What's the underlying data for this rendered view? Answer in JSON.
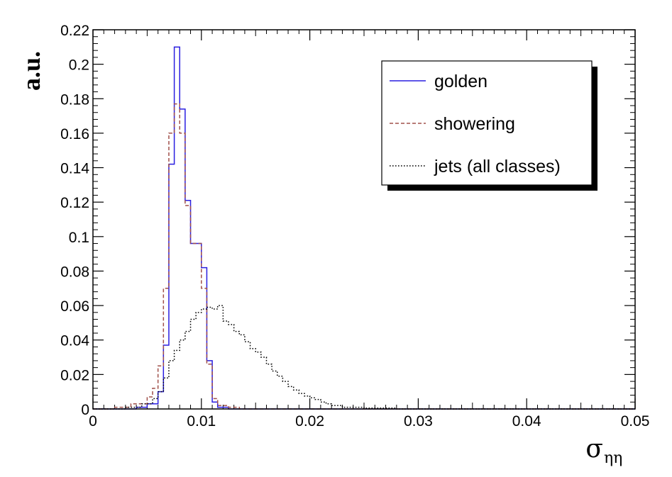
{
  "chart_data": {
    "type": "histogram-step",
    "xlabel": "σ",
    "xlabel_subscript": "ηη",
    "ylabel": "a.u.",
    "xlim": [
      0,
      0.05
    ],
    "ylim": [
      0,
      0.22
    ],
    "x_ticks": [
      0,
      0.01,
      0.02,
      0.03,
      0.04,
      0.05
    ],
    "x_tick_labels": [
      "0",
      "0.01",
      "0.02",
      "0.03",
      "0.04",
      "0.05"
    ],
    "y_ticks": [
      0,
      0.02,
      0.04,
      0.06,
      0.08,
      0.1,
      0.12,
      0.14,
      0.16,
      0.18,
      0.2,
      0.22
    ],
    "y_tick_labels": [
      "0",
      "0.02",
      "0.04",
      "0.06",
      "0.08",
      "0.1",
      "0.12",
      "0.14",
      "0.16",
      "0.18",
      "0.2",
      "0.22"
    ],
    "legend": {
      "position": "top-right",
      "border": true,
      "shadow": true
    },
    "series": [
      {
        "name": "golden",
        "style": "solid",
        "color": "#2a1ee0",
        "bins": [
          {
            "lo": 0.0,
            "hi": 0.004,
            "v": 0.0
          },
          {
            "lo": 0.004,
            "hi": 0.005,
            "v": 0.001
          },
          {
            "lo": 0.005,
            "hi": 0.006,
            "v": 0.003
          },
          {
            "lo": 0.006,
            "hi": 0.0065,
            "v": 0.01
          },
          {
            "lo": 0.0065,
            "hi": 0.007,
            "v": 0.037
          },
          {
            "lo": 0.007,
            "hi": 0.0075,
            "v": 0.142
          },
          {
            "lo": 0.0075,
            "hi": 0.008,
            "v": 0.21
          },
          {
            "lo": 0.008,
            "hi": 0.0085,
            "v": 0.174
          },
          {
            "lo": 0.0085,
            "hi": 0.009,
            "v": 0.121
          },
          {
            "lo": 0.009,
            "hi": 0.01,
            "v": 0.096
          },
          {
            "lo": 0.01,
            "hi": 0.0105,
            "v": 0.082
          },
          {
            "lo": 0.0105,
            "hi": 0.011,
            "v": 0.028
          },
          {
            "lo": 0.011,
            "hi": 0.0115,
            "v": 0.004
          },
          {
            "lo": 0.0115,
            "hi": 0.0125,
            "v": 0.001
          },
          {
            "lo": 0.0125,
            "hi": 0.05,
            "v": 0.0
          }
        ]
      },
      {
        "name": "showering",
        "style": "dashed",
        "color": "#a0504a",
        "bins": [
          {
            "lo": 0.0,
            "hi": 0.002,
            "v": 0.0
          },
          {
            "lo": 0.002,
            "hi": 0.0035,
            "v": 0.001
          },
          {
            "lo": 0.0035,
            "hi": 0.005,
            "v": 0.003
          },
          {
            "lo": 0.005,
            "hi": 0.0055,
            "v": 0.007
          },
          {
            "lo": 0.0055,
            "hi": 0.006,
            "v": 0.012
          },
          {
            "lo": 0.006,
            "hi": 0.0065,
            "v": 0.025
          },
          {
            "lo": 0.0065,
            "hi": 0.007,
            "v": 0.07
          },
          {
            "lo": 0.007,
            "hi": 0.0075,
            "v": 0.16
          },
          {
            "lo": 0.0075,
            "hi": 0.008,
            "v": 0.177
          },
          {
            "lo": 0.008,
            "hi": 0.0085,
            "v": 0.16
          },
          {
            "lo": 0.0085,
            "hi": 0.009,
            "v": 0.118
          },
          {
            "lo": 0.009,
            "hi": 0.01,
            "v": 0.096
          },
          {
            "lo": 0.01,
            "hi": 0.0105,
            "v": 0.07
          },
          {
            "lo": 0.0105,
            "hi": 0.011,
            "v": 0.026
          },
          {
            "lo": 0.011,
            "hi": 0.0115,
            "v": 0.006
          },
          {
            "lo": 0.0115,
            "hi": 0.0125,
            "v": 0.002
          },
          {
            "lo": 0.0125,
            "hi": 0.0135,
            "v": 0.001
          },
          {
            "lo": 0.0135,
            "hi": 0.05,
            "v": 0.0
          }
        ]
      },
      {
        "name": "jets (all classes)",
        "style": "dotted",
        "color": "#000000",
        "bins": [
          {
            "lo": 0.0,
            "hi": 0.003,
            "v": 0.0
          },
          {
            "lo": 0.003,
            "hi": 0.0045,
            "v": 0.001
          },
          {
            "lo": 0.0045,
            "hi": 0.0055,
            "v": 0.003
          },
          {
            "lo": 0.0055,
            "hi": 0.006,
            "v": 0.006
          },
          {
            "lo": 0.006,
            "hi": 0.0065,
            "v": 0.01
          },
          {
            "lo": 0.0065,
            "hi": 0.007,
            "v": 0.018
          },
          {
            "lo": 0.007,
            "hi": 0.0075,
            "v": 0.028
          },
          {
            "lo": 0.0075,
            "hi": 0.008,
            "v": 0.034
          },
          {
            "lo": 0.008,
            "hi": 0.0085,
            "v": 0.04
          },
          {
            "lo": 0.0085,
            "hi": 0.009,
            "v": 0.045
          },
          {
            "lo": 0.009,
            "hi": 0.0095,
            "v": 0.052
          },
          {
            "lo": 0.0095,
            "hi": 0.01,
            "v": 0.056
          },
          {
            "lo": 0.01,
            "hi": 0.0105,
            "v": 0.058
          },
          {
            "lo": 0.0105,
            "hi": 0.011,
            "v": 0.059
          },
          {
            "lo": 0.011,
            "hi": 0.0115,
            "v": 0.058
          },
          {
            "lo": 0.0115,
            "hi": 0.012,
            "v": 0.06
          },
          {
            "lo": 0.012,
            "hi": 0.0125,
            "v": 0.051
          },
          {
            "lo": 0.0125,
            "hi": 0.013,
            "v": 0.049
          },
          {
            "lo": 0.013,
            "hi": 0.0135,
            "v": 0.045
          },
          {
            "lo": 0.0135,
            "hi": 0.014,
            "v": 0.043
          },
          {
            "lo": 0.014,
            "hi": 0.0145,
            "v": 0.039
          },
          {
            "lo": 0.0145,
            "hi": 0.015,
            "v": 0.035
          },
          {
            "lo": 0.015,
            "hi": 0.0155,
            "v": 0.033
          },
          {
            "lo": 0.0155,
            "hi": 0.016,
            "v": 0.03
          },
          {
            "lo": 0.016,
            "hi": 0.0165,
            "v": 0.026
          },
          {
            "lo": 0.0165,
            "hi": 0.017,
            "v": 0.022
          },
          {
            "lo": 0.017,
            "hi": 0.0175,
            "v": 0.019
          },
          {
            "lo": 0.0175,
            "hi": 0.018,
            "v": 0.016
          },
          {
            "lo": 0.018,
            "hi": 0.0185,
            "v": 0.013
          },
          {
            "lo": 0.0185,
            "hi": 0.019,
            "v": 0.011
          },
          {
            "lo": 0.019,
            "hi": 0.0195,
            "v": 0.009
          },
          {
            "lo": 0.0195,
            "hi": 0.02,
            "v": 0.0075
          },
          {
            "lo": 0.02,
            "hi": 0.0205,
            "v": 0.0065
          },
          {
            "lo": 0.0205,
            "hi": 0.021,
            "v": 0.0055
          },
          {
            "lo": 0.021,
            "hi": 0.0215,
            "v": 0.004
          },
          {
            "lo": 0.0215,
            "hi": 0.022,
            "v": 0.003
          },
          {
            "lo": 0.022,
            "hi": 0.023,
            "v": 0.002
          },
          {
            "lo": 0.023,
            "hi": 0.025,
            "v": 0.001
          },
          {
            "lo": 0.025,
            "hi": 0.028,
            "v": 0.0005
          },
          {
            "lo": 0.028,
            "hi": 0.05,
            "v": 0.0
          }
        ]
      }
    ]
  }
}
